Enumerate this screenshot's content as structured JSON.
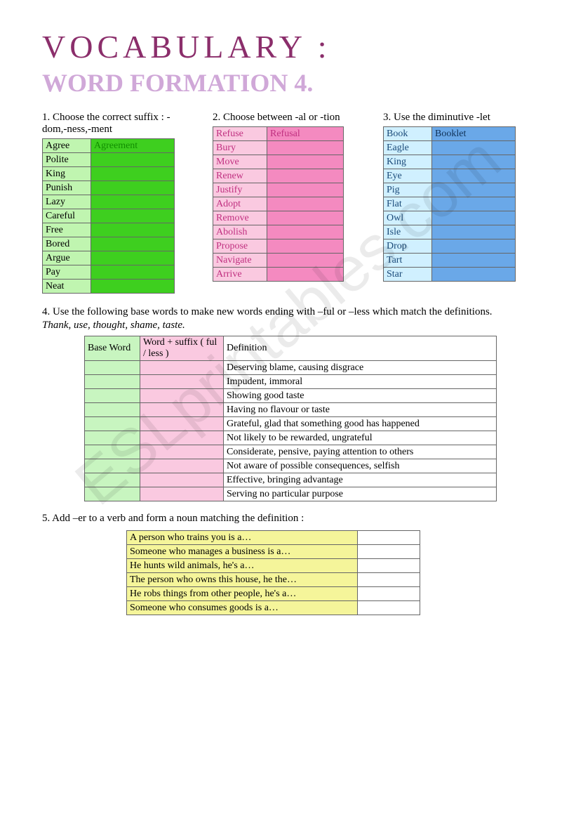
{
  "watermark": "ESLprintables.com",
  "titles": {
    "line1": "VOCABULARY :",
    "line2": "WORD FORMATION  4."
  },
  "section1": {
    "instruction": "1. Choose the correct suffix : -dom,-ness,-ment",
    "rows": [
      {
        "word": "Agree",
        "answer": "Agreement"
      },
      {
        "word": "Polite",
        "answer": ""
      },
      {
        "word": "King",
        "answer": ""
      },
      {
        "word": "Punish",
        "answer": ""
      },
      {
        "word": "Lazy",
        "answer": ""
      },
      {
        "word": "Careful",
        "answer": ""
      },
      {
        "word": "Free",
        "answer": ""
      },
      {
        "word": "Bored",
        "answer": ""
      },
      {
        "word": "Argue",
        "answer": ""
      },
      {
        "word": "Pay",
        "answer": ""
      },
      {
        "word": "Neat",
        "answer": ""
      }
    ],
    "colors": {
      "col1_bg": "#c0f5b0",
      "col2_bg": "#3ecf1f",
      "col2_text": "#118e00"
    }
  },
  "section2": {
    "instruction": "2. Choose between -al or -tion",
    "rows": [
      {
        "word": "Refuse",
        "answer": "Refusal"
      },
      {
        "word": "Bury",
        "answer": ""
      },
      {
        "word": "Move",
        "answer": ""
      },
      {
        "word": "Renew",
        "answer": ""
      },
      {
        "word": "Justify",
        "answer": ""
      },
      {
        "word": "Adopt",
        "answer": ""
      },
      {
        "word": "Remove",
        "answer": ""
      },
      {
        "word": "Abolish",
        "answer": ""
      },
      {
        "word": "Propose",
        "answer": ""
      },
      {
        "word": "Navigate",
        "answer": ""
      },
      {
        "word": "Arrive",
        "answer": ""
      }
    ],
    "colors": {
      "col1_bg": "#fac9e0",
      "col2_bg": "#f48ac0",
      "text": "#c03080"
    }
  },
  "section3": {
    "instruction": "3. Use the diminutive -let",
    "rows": [
      {
        "word": "Book",
        "answer": "Booklet"
      },
      {
        "word": "Eagle",
        "answer": ""
      },
      {
        "word": "King",
        "answer": ""
      },
      {
        "word": "Eye",
        "answer": ""
      },
      {
        "word": "Pig",
        "answer": ""
      },
      {
        "word": "Flat",
        "answer": ""
      },
      {
        "word": "Owl",
        "answer": ""
      },
      {
        "word": "Isle",
        "answer": ""
      },
      {
        "word": "Drop",
        "answer": ""
      },
      {
        "word": "Tart",
        "answer": ""
      },
      {
        "word": "Star",
        "answer": ""
      }
    ],
    "colors": {
      "col1_bg": "#d0f0ff",
      "col2_bg": "#6aa8e8",
      "text": "#1a4a78"
    }
  },
  "section4": {
    "instruction": "4. Use the following base words to make new words ending with –ful or –less which match the definitions.",
    "italic_line": "Thank, use, thought, shame, taste.",
    "headers": {
      "h1": "Base Word",
      "h2": "Word + suffix ( ful / less )",
      "h3": "Definition"
    },
    "rows": [
      {
        "def": "Deserving blame, causing disgrace"
      },
      {
        "def": "Impudent, immoral"
      },
      {
        "def": "Showing good taste"
      },
      {
        "def": "Having no flavour or taste"
      },
      {
        "def": "Grateful, glad that something good has happened"
      },
      {
        "def": "Not likely to be rewarded, ungrateful"
      },
      {
        "def": "Considerate, pensive, paying attention to others"
      },
      {
        "def": "Not aware of possible consequences, selfish"
      },
      {
        "def": "Effective, bringing advantage"
      },
      {
        "def": "Serving no particular purpose"
      }
    ],
    "colors": {
      "col1_bg": "#c8f5c0",
      "col2_bg": "#fac9e0",
      "col3_bg": "#ffffff"
    }
  },
  "section5": {
    "instruction": "5. Add –er to a verb and form a noun matching the definition :",
    "rows": [
      {
        "def": "A person who trains you is a…"
      },
      {
        "def": "Someone who manages a business is a…"
      },
      {
        "def": "He hunts wild animals, he's a…"
      },
      {
        "def": "The person who owns this house, he the…"
      },
      {
        "def": "He robs things from other people, he's a…"
      },
      {
        "def": "Someone who consumes goods is a…"
      }
    ],
    "colors": {
      "col1_bg": "#f5f59a",
      "col2_bg": "#ffffff"
    }
  }
}
